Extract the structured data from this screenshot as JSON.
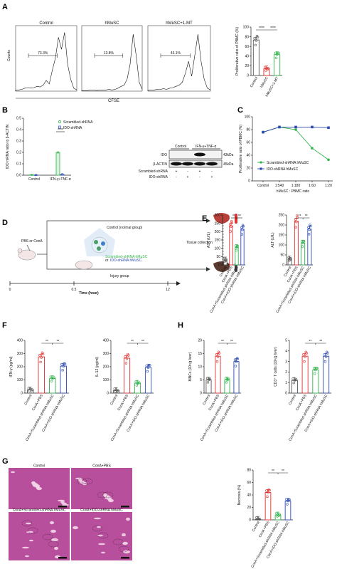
{
  "panels": {
    "A": {
      "letter": "A",
      "flow": {
        "titles": [
          "Control",
          "hMuSC",
          "hMuSC+1-MT"
        ],
        "percents": [
          "73.3%",
          "13.8%",
          "43.1%"
        ],
        "ylabel": "Counts",
        "xlabel": "CFSE"
      },
      "chart": {
        "ylabel": "Proliferative ratio of PBMC (%)",
        "yticks": [
          "0",
          "20",
          "40",
          "60",
          "80",
          "100"
        ],
        "categories": [
          "Control",
          "hMuSC",
          "hMuSC+1-MT"
        ],
        "sig": [
          "****",
          "****"
        ]
      }
    },
    "B": {
      "letter": "B",
      "chart": {
        "ylabel": "IDO mRNA ratio to β-ACTIN",
        "yticks": [
          "0.0",
          "0.1",
          "0.2",
          "0.3",
          "0.4",
          "0.5"
        ],
        "categories": [
          "Control",
          "IFN-γ+TNF-α"
        ],
        "legend": [
          "Scrambled-shRNA",
          "IDO-shRNA"
        ],
        "sig": "****"
      },
      "blot": {
        "header_control": "Control",
        "header_treat": "IFN-γ+TNF-α",
        "rows": [
          "IDO",
          "β-ACTIN"
        ],
        "sizes": [
          "43kDa",
          "45kDa"
        ],
        "row_labels": [
          "Scrambled-shRNA",
          "IDO-shRNA"
        ],
        "signs": [
          [
            "+",
            "-",
            "+",
            "-"
          ],
          [
            "-",
            "+",
            "-",
            "+"
          ]
        ]
      }
    },
    "C": {
      "letter": "C",
      "ylabel": "Proliferative ratio of PBMC (%)",
      "yticks": [
        "0",
        "20",
        "40",
        "60",
        "80",
        "100"
      ],
      "xticks": [
        "Control",
        "1:540",
        "1:180",
        "1:60",
        "1:20"
      ],
      "xlabel": "hMuSC : PBMC ratio",
      "legend": [
        "Scrambled-shRNA hMuSC",
        "IDO-shRNA hMuSC"
      ]
    },
    "D": {
      "letter": "D",
      "pbs_label": "PBS or ConA",
      "control_label": "Control (normal group)",
      "scrambled_label": "Scrambled-shRNA hMuSC",
      "or_label": "or",
      "ido_label": "IDO-shRNA hMuSC",
      "injury_label": "Injury group",
      "tissue_label": "Tissue collection",
      "timeline_ticks": [
        "0",
        "0.5",
        "12"
      ],
      "timeline_label": "Time (hour)"
    },
    "E": {
      "letter": "E",
      "charts": [
        {
          "ylabel": "AST (U/L)",
          "yticks": [
            "0",
            "50",
            "100",
            "150",
            "200",
            "250",
            "300"
          ],
          "sig": [
            "**",
            "**"
          ]
        },
        {
          "ylabel": "ALT (U/L)",
          "yticks": [
            "0",
            "50",
            "100",
            "150",
            "200",
            "250"
          ],
          "sig": [
            "**",
            "**"
          ]
        }
      ]
    },
    "F": {
      "letter": "F",
      "charts": [
        {
          "ylabel": "IFN-γ (pg/ml)",
          "yticks": [
            "0",
            "100",
            "200",
            "300",
            "400"
          ],
          "sig": [
            "**",
            "**"
          ]
        },
        {
          "ylabel": "IL-12 (pg/ml)",
          "yticks": [
            "0",
            "100",
            "200",
            "300",
            "400"
          ],
          "sig": [
            "**",
            "**"
          ]
        }
      ]
    },
    "H": {
      "letter": "H",
      "charts": [
        {
          "ylabel": "MNCs (10⁶/g liver)",
          "yticks": [
            "0",
            "5",
            "10",
            "15",
            "20"
          ],
          "sig": [
            "**",
            "**"
          ]
        },
        {
          "ylabel": "CD3⁺ T cells (10⁶/g liver)",
          "yticks": [
            "0",
            "1",
            "2",
            "3",
            "4",
            "5"
          ],
          "sig": [
            "**",
            "**"
          ]
        }
      ]
    },
    "G": {
      "letter": "G",
      "images": [
        "Control",
        "ConA+PBS",
        "ConA+Scrambled-shRNA hMuSC",
        "ConA+IDO-shRNA hMuSC"
      ],
      "chart": {
        "ylabel": "Necrosis (%)",
        "yticks": [
          "0",
          "20",
          "40",
          "60",
          "80"
        ],
        "sig": [
          "**",
          "**"
        ]
      }
    }
  },
  "groups4": [
    "Control",
    "ConA+PBS",
    "ConA+Scrambled-shRNA hMuSC",
    "ConA+IDO-shRNA hMuSC"
  ],
  "colors": {
    "control": "#555555",
    "pbs": "#e0302f",
    "scrambled": "#2fb34a",
    "ido": "#2c4ab0",
    "histo": "#b84f9c"
  },
  "chart_data": [
    {
      "type": "bar",
      "panel": "A",
      "categories": [
        "Control",
        "hMuSC",
        "hMuSC+1-MT"
      ],
      "values": [
        73.3,
        13.8,
        43.1
      ],
      "ylim": [
        0,
        100
      ]
    },
    {
      "type": "bar",
      "panel": "B",
      "categories": [
        "Control",
        "IFN-γ+TNF-α"
      ],
      "series": [
        {
          "name": "Scrambled-shRNA",
          "values": [
            0.003,
            0.2
          ]
        },
        {
          "name": "IDO-shRNA",
          "values": [
            0.002,
            0.008
          ]
        }
      ],
      "ylim": [
        0,
        0.5
      ]
    },
    {
      "type": "line",
      "panel": "C",
      "x": [
        "Control",
        "1:540",
        "1:180",
        "1:60",
        "1:20"
      ],
      "series": [
        {
          "name": "Scrambled-shRNA hMuSC",
          "values": [
            76,
            84,
            80,
            51,
            33
          ]
        },
        {
          "name": "IDO-shRNA hMuSC",
          "values": [
            76,
            84,
            84,
            84,
            83
          ]
        }
      ],
      "ylim": [
        0,
        100
      ]
    },
    {
      "type": "bar",
      "panel": "E-AST",
      "categories": [
        "Control",
        "ConA+PBS",
        "ConA+Scrambled-shRNA hMuSC",
        "ConA+IDO-shRNA hMuSC"
      ],
      "values": [
        30,
        235,
        105,
        215
      ],
      "ylim": [
        0,
        300
      ]
    },
    {
      "type": "bar",
      "panel": "E-ALT",
      "categories": [
        "Control",
        "ConA+PBS",
        "ConA+Scrambled-shRNA hMuSC",
        "ConA+IDO-shRNA hMuSC"
      ],
      "values": [
        30,
        220,
        110,
        180
      ],
      "ylim": [
        0,
        250
      ]
    },
    {
      "type": "bar",
      "panel": "F-IFN",
      "categories": [
        "Control",
        "ConA+PBS",
        "ConA+Scrambled-shRNA hMuSC",
        "ConA+IDO-shRNA hMuSC"
      ],
      "values": [
        25,
        275,
        110,
        205
      ],
      "ylim": [
        0,
        400
      ]
    },
    {
      "type": "bar",
      "panel": "F-IL12",
      "categories": [
        "Control",
        "ConA+PBS",
        "ConA+Scrambled-shRNA hMuSC",
        "ConA+IDO-shRNA hMuSC"
      ],
      "values": [
        20,
        265,
        75,
        195
      ],
      "ylim": [
        0,
        400
      ]
    },
    {
      "type": "bar",
      "panel": "H-MNC",
      "categories": [
        "Control",
        "ConA+PBS",
        "ConA+Scrambled-shRNA hMuSC",
        "ConA+IDO-shRNA hMuSC"
      ],
      "values": [
        5,
        14,
        5,
        12
      ],
      "ylim": [
        0,
        20
      ]
    },
    {
      "type": "bar",
      "panel": "H-CD3",
      "categories": [
        "Control",
        "ConA+PBS",
        "ConA+Scrambled-shRNA hMuSC",
        "ConA+IDO-shRNA hMuSC"
      ],
      "values": [
        1.2,
        3.5,
        2.2,
        3.5
      ],
      "ylim": [
        0,
        5
      ]
    },
    {
      "type": "bar",
      "panel": "G",
      "categories": [
        "Control",
        "ConA+PBS",
        "ConA+Scrambled-shRNA hMuSC",
        "ConA+IDO-shRNA hMuSC"
      ],
      "values": [
        1,
        44,
        8,
        30
      ],
      "ylim": [
        0,
        80
      ]
    }
  ]
}
